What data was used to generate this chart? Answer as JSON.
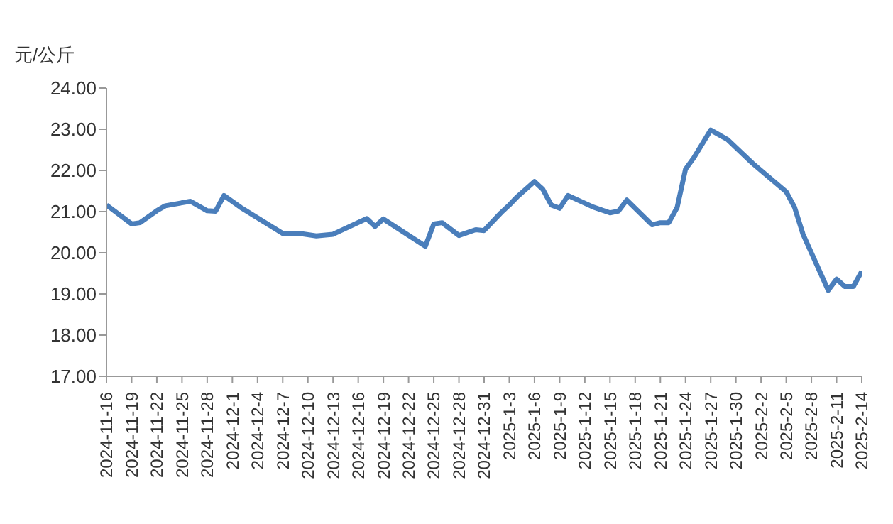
{
  "chart_data": {
    "type": "line",
    "ylabel": "元/公斤",
    "x": [
      "2024-11-16",
      "2024-11-19",
      "2024-11-20",
      "2024-11-22",
      "2024-11-23",
      "2024-11-26",
      "2024-11-28",
      "2024-11-29",
      "2024-11-30",
      "2024-12-02",
      "2024-12-07",
      "2024-12-09",
      "2024-12-11",
      "2024-12-13",
      "2024-12-17",
      "2024-12-18",
      "2024-12-19",
      "2024-12-24",
      "2024-12-25",
      "2024-12-26",
      "2024-12-28",
      "2024-12-30",
      "2024-12-31",
      "2025-01-02",
      "2025-01-03",
      "2025-01-04",
      "2025-01-06",
      "2025-01-07",
      "2025-01-08",
      "2025-01-09",
      "2025-01-10",
      "2025-01-13",
      "2025-01-15",
      "2025-01-16",
      "2025-01-17",
      "2025-01-20",
      "2025-01-21",
      "2025-01-22",
      "2025-01-23",
      "2025-01-24",
      "2025-01-25",
      "2025-01-27",
      "2025-01-29",
      "2025-02-01",
      "2025-02-05",
      "2025-02-06",
      "2025-02-07",
      "2025-02-10",
      "2025-02-11",
      "2025-02-12",
      "2025-02-13",
      "2025-02-14"
    ],
    "series": [
      {
        "color": "#4a7ebb",
        "values": [
          21.16,
          20.7,
          20.73,
          21.02,
          21.14,
          21.25,
          21.02,
          21.01,
          21.39,
          21.1,
          20.47,
          20.47,
          20.41,
          20.45,
          20.83,
          20.64,
          20.82,
          20.16,
          20.7,
          20.73,
          20.42,
          20.56,
          20.54,
          20.97,
          21.16,
          21.37,
          21.73,
          21.54,
          21.16,
          21.08,
          21.39,
          21.11,
          20.97,
          21.01,
          21.28,
          20.68,
          20.73,
          20.73,
          21.1,
          22.03,
          22.31,
          22.98,
          22.75,
          22.17,
          21.48,
          21.1,
          20.45,
          19.09,
          19.36,
          19.18,
          19.18,
          19.55
        ]
      }
    ],
    "xlim": [
      "2024-11-16",
      "2025-02-14"
    ],
    "xticks": [
      {
        "value": "2024-11-16",
        "label": "2024-11-16"
      },
      {
        "value": "2024-11-19",
        "label": "2024-11-19"
      },
      {
        "value": "2024-11-22",
        "label": "2024-11-22"
      },
      {
        "value": "2024-11-25",
        "label": "2024-11-25"
      },
      {
        "value": "2024-11-28",
        "label": "2024-11-28"
      },
      {
        "value": "2024-12-01",
        "label": "2024-12-1"
      },
      {
        "value": "2024-12-04",
        "label": "2024-12-4"
      },
      {
        "value": "2024-12-07",
        "label": "2024-12-7"
      },
      {
        "value": "2024-12-10",
        "label": "2024-12-10"
      },
      {
        "value": "2024-12-13",
        "label": "2024-12-13"
      },
      {
        "value": "2024-12-16",
        "label": "2024-12-16"
      },
      {
        "value": "2024-12-19",
        "label": "2024-12-19"
      },
      {
        "value": "2024-12-22",
        "label": "2024-12-22"
      },
      {
        "value": "2024-12-25",
        "label": "2024-12-25"
      },
      {
        "value": "2024-12-28",
        "label": "2024-12-28"
      },
      {
        "value": "2024-12-31",
        "label": "2024-12-31"
      },
      {
        "value": "2025-01-03",
        "label": "2025-1-3"
      },
      {
        "value": "2025-01-06",
        "label": "2025-1-6"
      },
      {
        "value": "2025-01-09",
        "label": "2025-1-9"
      },
      {
        "value": "2025-01-12",
        "label": "2025-1-12"
      },
      {
        "value": "2025-01-15",
        "label": "2025-1-15"
      },
      {
        "value": "2025-01-18",
        "label": "2025-1-18"
      },
      {
        "value": "2025-01-21",
        "label": "2025-1-21"
      },
      {
        "value": "2025-01-24",
        "label": "2025-1-24"
      },
      {
        "value": "2025-01-27",
        "label": "2025-1-27"
      },
      {
        "value": "2025-01-30",
        "label": "2025-1-30"
      },
      {
        "value": "2025-02-02",
        "label": "2025-2-2"
      },
      {
        "value": "2025-02-05",
        "label": "2025-2-5"
      },
      {
        "value": "2025-02-08",
        "label": "2025-2-8"
      },
      {
        "value": "2025-02-11",
        "label": "2025-2-11"
      },
      {
        "value": "2025-02-14",
        "label": "2025-2-14"
      }
    ],
    "ylim": [
      17,
      24
    ],
    "yticks": [
      {
        "value": 17,
        "label": "17.00"
      },
      {
        "value": 18,
        "label": "18.00"
      },
      {
        "value": 19,
        "label": "19.00"
      },
      {
        "value": 20,
        "label": "20.00"
      },
      {
        "value": 21,
        "label": "21.00"
      },
      {
        "value": 22,
        "label": "22.00"
      },
      {
        "value": 23,
        "label": "23.00"
      },
      {
        "value": 24,
        "label": "24.00"
      }
    ],
    "grid": false,
    "legend": false,
    "marker": "none",
    "line_style": "solid"
  }
}
